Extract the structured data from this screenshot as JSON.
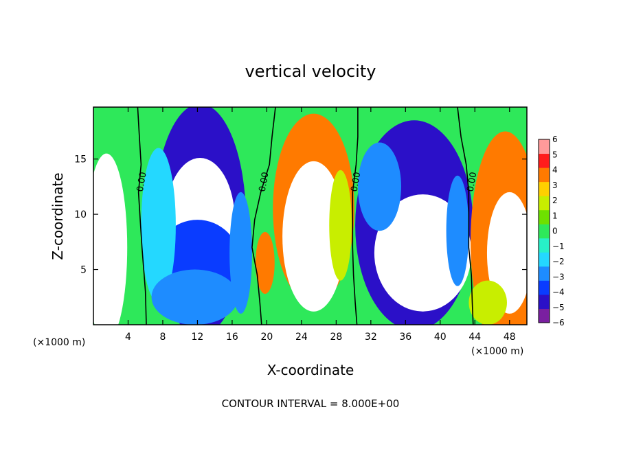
{
  "chart_data": {
    "type": "heatmap",
    "title": "vertical velocity",
    "xlabel": "X-coordinate",
    "ylabel": "Z-coordinate",
    "x_unit_label": "(×1000 m)",
    "footer": "CONTOUR INTERVAL = 8.000E+00",
    "x_ticks": [
      4,
      8,
      12,
      16,
      20,
      24,
      28,
      32,
      36,
      40,
      44,
      48
    ],
    "y_ticks": [
      5,
      10,
      15
    ],
    "xlim": [
      0,
      50
    ],
    "ylim": [
      0,
      19.7
    ],
    "colorbar": {
      "ticks": [
        "6",
        "5",
        "4",
        "3",
        "2",
        "1",
        "0",
        "−1",
        "−2",
        "−3",
        "−4",
        "−5",
        "−6"
      ],
      "range": [
        -6,
        6
      ],
      "colors": [
        "#7a1fa0",
        "#2b10c8",
        "#0a3cff",
        "#1e8cff",
        "#24d8ff",
        "#27f0c8",
        "#2ee85a",
        "#6ee000",
        "#c8ee00",
        "#ffd000",
        "#ff7a00",
        "#ff1c1c",
        "#ff9a9a"
      ]
    },
    "zero_contour_label": "0.00",
    "zero_contours": [
      [
        [
          5.1,
          19.7
        ],
        [
          5.3,
          17
        ],
        [
          5.5,
          14.5
        ],
        [
          5.2,
          12
        ],
        [
          5.4,
          9.5
        ],
        [
          5.6,
          7
        ],
        [
          5.8,
          5
        ],
        [
          6.0,
          3
        ],
        [
          6.1,
          0
        ]
      ],
      [
        [
          21.0,
          19.7
        ],
        [
          20.6,
          17
        ],
        [
          20.3,
          14.5
        ],
        [
          19.3,
          12
        ],
        [
          18.6,
          9.5
        ],
        [
          18.3,
          7
        ],
        [
          18.9,
          4.5
        ],
        [
          19.2,
          2
        ],
        [
          19.4,
          0
        ]
      ],
      [
        [
          30.5,
          19.7
        ],
        [
          30.5,
          17
        ],
        [
          30.3,
          14.5
        ],
        [
          29.9,
          12
        ],
        [
          29.9,
          9.5
        ],
        [
          29.9,
          7
        ],
        [
          30.0,
          4.5
        ],
        [
          30.2,
          2
        ],
        [
          30.4,
          0
        ]
      ],
      [
        [
          42.0,
          19.7
        ],
        [
          42.4,
          17
        ],
        [
          43.0,
          14.5
        ],
        [
          43.3,
          12
        ],
        [
          43.3,
          9.5
        ],
        [
          43.3,
          7
        ],
        [
          43.6,
          4.5
        ],
        [
          43.7,
          2
        ],
        [
          43.8,
          0
        ]
      ]
    ],
    "cells": [
      {
        "x": 1.0,
        "z": 7.0,
        "w": -0.3,
        "rx": 3.4,
        "rz": 12.0
      },
      {
        "x": 1.5,
        "z": 7.0,
        "w": 6.5,
        "rx": 2.4,
        "rz": 8.5
      },
      {
        "x": 3.6,
        "z": 18.0,
        "w": -0.3,
        "rx": 2.0,
        "rz": 3.0
      },
      {
        "x": 12.3,
        "z": 9.5,
        "w": -4.5,
        "rx": 5.3,
        "rz": 10.5
      },
      {
        "x": 12.3,
        "z": 9.5,
        "w": -6.5,
        "rx": 4.0,
        "rz": 5.6
      },
      {
        "x": 13.2,
        "z": 10.6,
        "w": -6.2,
        "rx": 2.4,
        "rz": 1.8
      },
      {
        "x": 12.0,
        "z": 5.5,
        "w": -3.5,
        "rx": 5.0,
        "rz": 4.0
      },
      {
        "x": 7.5,
        "z": 9.0,
        "w": -2.2,
        "rx": 2.0,
        "rz": 7.0
      },
      {
        "x": 17.0,
        "z": 6.5,
        "w": -2.5,
        "rx": 1.3,
        "rz": 5.5
      },
      {
        "x": 11.7,
        "z": 2.5,
        "w": -3.2,
        "rx": 5.0,
        "rz": 2.5
      },
      {
        "x": 25.4,
        "z": 10.5,
        "w": 4.0,
        "rx": 4.7,
        "rz": 8.6
      },
      {
        "x": 25.4,
        "z": 8.0,
        "w": 6.5,
        "rx": 3.6,
        "rz": 6.8
      },
      {
        "x": 19.8,
        "z": 5.6,
        "w": 4.0,
        "rx": 1.1,
        "rz": 2.8
      },
      {
        "x": 28.5,
        "z": 9.0,
        "w": 1.5,
        "rx": 1.3,
        "rz": 5.0
      },
      {
        "x": 37.0,
        "z": 9.0,
        "w": -4.5,
        "rx": 6.8,
        "rz": 9.5
      },
      {
        "x": 38.0,
        "z": 6.5,
        "w": -6.5,
        "rx": 5.6,
        "rz": 5.3
      },
      {
        "x": 33.0,
        "z": 12.5,
        "w": -3.0,
        "rx": 2.5,
        "rz": 4.0
      },
      {
        "x": 42.0,
        "z": 8.5,
        "w": -2.5,
        "rx": 1.3,
        "rz": 5.0
      },
      {
        "x": 47.5,
        "z": 7.5,
        "w": 4.0,
        "rx": 4.0,
        "rz": 10.0
      },
      {
        "x": 48.0,
        "z": 6.5,
        "w": 6.5,
        "rx": 2.6,
        "rz": 5.5
      },
      {
        "x": 45.5,
        "z": 2.0,
        "w": 2.0,
        "rx": 2.2,
        "rz": 2.0
      }
    ]
  }
}
